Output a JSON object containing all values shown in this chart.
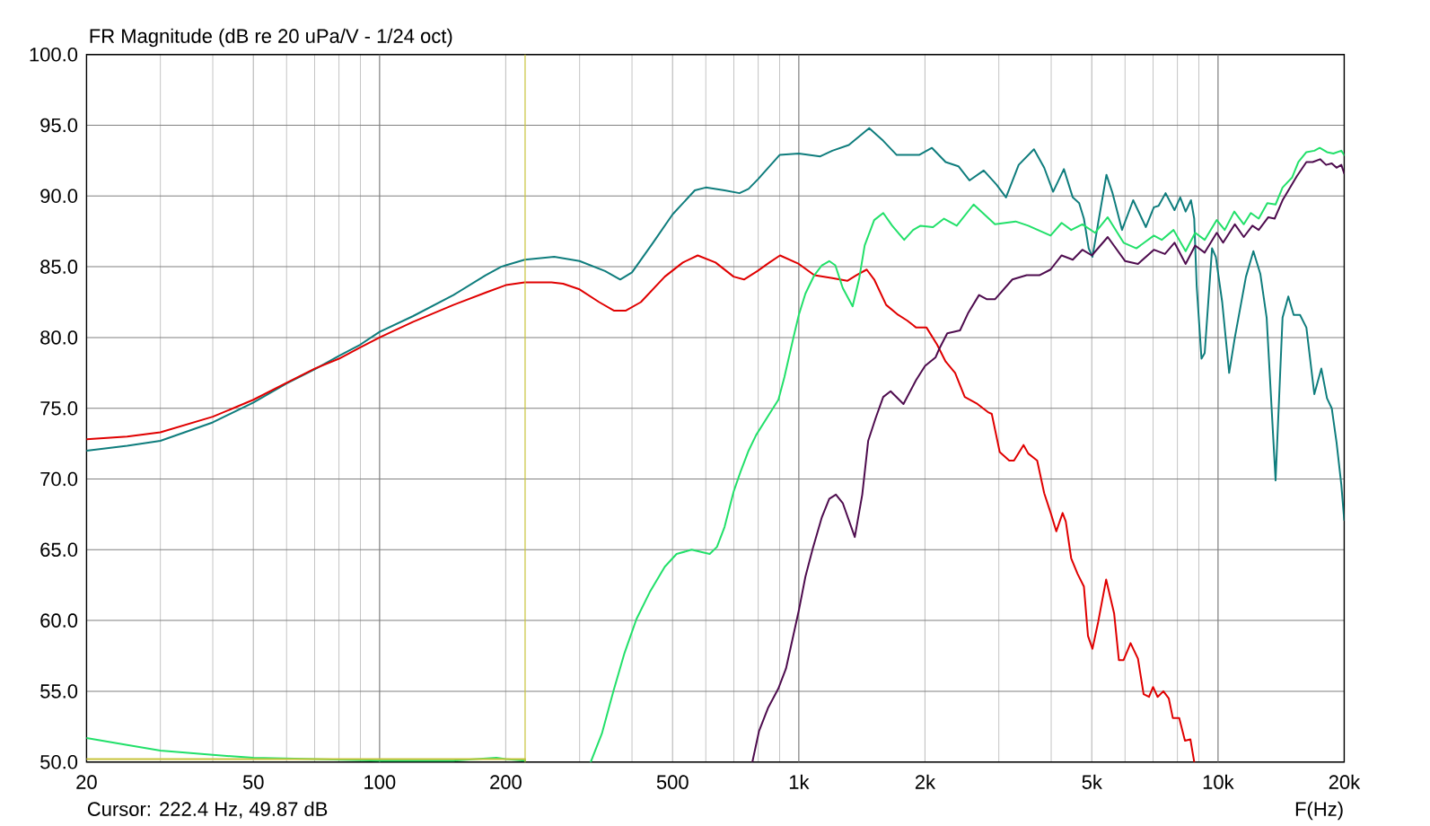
{
  "chart_data": {
    "type": "line",
    "title": "FR Magnitude (dB re 20 uPa/V - 1/24 oct)",
    "xlabel": "F(Hz)",
    "annotations": [
      "Cursor: 222.4 Hz, 49.87 dB"
    ],
    "log": "x",
    "grid": true,
    "xlim": [
      20,
      20000
    ],
    "ylim": [
      50,
      100
    ],
    "xticks": [
      20,
      50,
      100,
      200,
      500,
      {
        "value": 1000,
        "label": "1k"
      },
      {
        "value": 2000,
        "label": "2k"
      },
      {
        "value": 5000,
        "label": "5k"
      },
      {
        "value": 10000,
        "label": "10k"
      },
      {
        "value": 20000,
        "label": "20k"
      }
    ],
    "yticks": [
      {
        "value": 50,
        "label": "50.0"
      },
      {
        "value": 55,
        "label": "55.0"
      },
      {
        "value": 60,
        "label": "60.0"
      },
      {
        "value": 65,
        "label": "65.0"
      },
      {
        "value": 70,
        "label": "70.0"
      },
      {
        "value": 75,
        "label": "75.0"
      },
      {
        "value": 80,
        "label": "80.0"
      },
      {
        "value": 85,
        "label": "85.0"
      },
      {
        "value": 90,
        "label": "90.0"
      },
      {
        "value": 95,
        "label": "95.0"
      },
      {
        "value": 100,
        "label": "100.0"
      }
    ],
    "ref_lines": [
      {
        "axis": "x",
        "value": 222.4,
        "color": "#c8c43c"
      }
    ],
    "series": [
      {
        "color": "#0f7d7d",
        "x": [
          20,
          25,
          30,
          40,
          50,
          60,
          70,
          80,
          90,
          100,
          120,
          150,
          179,
          195,
          200,
          222,
          261,
          300,
          345,
          375,
          400,
          449,
          500,
          565,
          600,
          665,
          722,
          759,
          800,
          900,
          1000,
          1125,
          1202,
          1316,
          1472,
          1590,
          1712,
          1936,
          2078,
          2240,
          2403,
          2553,
          2761,
          2962,
          3121,
          3346,
          3639,
          3849,
          4042,
          4289,
          4503,
          4664,
          4787,
          4915,
          5017,
          5178,
          5418,
          5603,
          5902,
          6275,
          6729,
          7030,
          7215,
          7498,
          7874,
          8125,
          8370,
          8620,
          8774,
          8896,
          9131,
          9294,
          9677,
          9879,
          10231,
          10630,
          10968,
          11659,
          12144,
          12614,
          13062,
          13718,
          14254,
          14712,
          15151,
          15690,
          16248,
          16971,
          17640,
          18197,
          18678,
          19175,
          19686,
          20000
        ],
        "values": [
          72.0,
          72.35,
          72.7,
          74.0,
          75.4,
          76.75,
          77.75,
          78.7,
          79.5,
          80.4,
          81.5,
          83.0,
          84.4,
          85.0,
          85.1,
          85.5,
          85.7,
          85.4,
          84.7,
          84.1,
          84.6,
          86.7,
          88.7,
          90.4,
          90.6,
          90.4,
          90.2,
          90.5,
          91.2,
          92.9,
          93.0,
          92.8,
          93.2,
          93.6,
          94.8,
          93.9,
          92.9,
          92.9,
          93.4,
          92.4,
          92.1,
          91.1,
          91.8,
          90.8,
          89.9,
          92.2,
          93.3,
          92.0,
          90.3,
          91.9,
          89.9,
          89.5,
          88.4,
          86.3,
          85.7,
          88.1,
          91.5,
          90.2,
          87.6,
          89.7,
          87.8,
          89.2,
          89.3,
          90.2,
          89.0,
          89.9,
          88.9,
          89.7,
          88.4,
          83.6,
          78.5,
          78.9,
          86.3,
          85.7,
          82.5,
          77.5,
          80.0,
          84.3,
          86.1,
          84.5,
          81.4,
          69.9,
          81.4,
          82.9,
          81.6,
          81.6,
          80.7,
          76.0,
          77.8,
          75.7,
          75.0,
          72.6,
          69.6,
          67.1
        ]
      },
      {
        "color": "#e00000",
        "x": [
          20,
          25,
          30,
          40,
          50,
          60,
          70,
          80,
          90,
          100,
          120,
          150,
          180,
          200,
          222,
          257,
          274,
          300,
          334,
          362,
          387,
          420,
          479,
          529,
          574,
          633,
          699,
          740,
          797,
          851,
          902,
          1000,
          1089,
          1202,
          1305,
          1371,
          1452,
          1513,
          1616,
          1726,
          1813,
          1905,
          2017,
          2137,
          2240,
          2360,
          2488,
          2668,
          2836,
          2886,
          3015,
          3177,
          3261,
          3436,
          3527,
          3704,
          3849,
          3999,
          4113,
          4259,
          4334,
          4464,
          4623,
          4787,
          4896,
          5017,
          5178,
          5409,
          5651,
          5801,
          5953,
          6186,
          6442,
          6645,
          6846,
          7000,
          7178,
          7407,
          7630,
          7805,
          8081,
          8339,
          8592,
          8774
        ],
        "values": [
          72.8,
          73.0,
          73.3,
          74.4,
          75.6,
          76.8,
          77.8,
          78.5,
          79.3,
          80.0,
          81.1,
          82.3,
          83.2,
          83.7,
          83.9,
          83.9,
          83.8,
          83.4,
          82.5,
          81.9,
          81.9,
          82.5,
          84.3,
          85.3,
          85.8,
          85.3,
          84.3,
          84.1,
          84.7,
          85.3,
          85.8,
          85.2,
          84.4,
          84.2,
          84.0,
          84.4,
          84.8,
          84.1,
          82.3,
          81.6,
          81.2,
          80.7,
          80.7,
          79.5,
          78.3,
          77.5,
          75.8,
          75.3,
          74.7,
          74.6,
          71.9,
          71.3,
          71.3,
          72.4,
          71.8,
          71.3,
          69.0,
          67.5,
          66.3,
          67.6,
          67.0,
          64.4,
          63.3,
          62.4,
          58.9,
          58.0,
          59.9,
          62.9,
          60.5,
          57.2,
          57.2,
          58.4,
          57.3,
          54.8,
          54.6,
          55.3,
          54.6,
          55.0,
          54.5,
          53.1,
          53.1,
          51.5,
          51.6,
          50.0
        ]
      },
      {
        "color": "#22e06a",
        "x": [
          20,
          25,
          30,
          40,
          50,
          70,
          100,
          150,
          190,
          200,
          222.4,
          270,
          319,
          339,
          362,
          384,
          410,
          441,
          479,
          511,
          555,
          613,
          638,
          665,
          699,
          728,
          759,
          791,
          851,
          894,
          924,
          971,
          1000,
          1037,
          1089,
          1135,
          1182,
          1222,
          1273,
          1344,
          1394,
          1436,
          1513,
          1590,
          1670,
          1784,
          1874,
          1952,
          2090,
          2220,
          2381,
          2612,
          2937,
          3289,
          3527,
          3986,
          4236,
          4464,
          4746,
          5088,
          5457,
          5953,
          6386,
          7030,
          7340,
          7833,
          8370,
          8820,
          9294,
          9930,
          10373,
          10934,
          11520,
          11972,
          12504,
          13110,
          13718,
          14254,
          15016,
          15550,
          16248,
          16971,
          17484,
          18197,
          18845,
          19686,
          20000
        ],
        "values": [
          51.7,
          51.2,
          50.8,
          50.5,
          50.3,
          50.2,
          50.1,
          50.1,
          50.3,
          50.2,
          50.1,
          null,
          50.0,
          52.0,
          55.1,
          57.7,
          60.1,
          62.0,
          63.8,
          64.7,
          65.0,
          64.7,
          65.2,
          66.6,
          69.1,
          70.6,
          72.0,
          73.1,
          74.6,
          75.6,
          77.2,
          80.0,
          81.6,
          83.1,
          84.4,
          85.1,
          85.4,
          85.1,
          83.5,
          82.2,
          84.2,
          86.5,
          88.3,
          88.8,
          87.9,
          86.9,
          87.6,
          87.9,
          87.8,
          88.4,
          87.9,
          89.4,
          88.0,
          88.2,
          87.9,
          87.2,
          88.1,
          87.6,
          88.0,
          87.4,
          88.5,
          86.7,
          86.3,
          87.2,
          86.9,
          87.6,
          86.1,
          87.4,
          86.9,
          88.3,
          87.6,
          88.9,
          88.0,
          88.8,
          88.4,
          89.5,
          89.4,
          90.6,
          91.3,
          92.4,
          93.1,
          93.2,
          93.4,
          93.1,
          93.0,
          93.2,
          92.9
        ]
      },
      {
        "color": "#4e0c4e",
        "x": [
          775,
          804,
          844,
          894,
          932,
          963,
          1000,
          1037,
          1080,
          1135,
          1182,
          1226,
          1273,
          1360,
          1417,
          1464,
          1525,
          1590,
          1656,
          1777,
          1905,
          2001,
          2120,
          2163,
          2260,
          2424,
          2532,
          2691,
          2811,
          2937,
          3232,
          3496,
          3749,
          3986,
          4236,
          4503,
          4746,
          5000,
          5457,
          6005,
          6442,
          7030,
          7470,
          7874,
          8370,
          8820,
          9294,
          9930,
          10283,
          10968,
          11520,
          12077,
          12504,
          13180,
          13646,
          14254,
          15417,
          16248,
          16823,
          17517,
          18107,
          18678,
          19175,
          19686,
          20000
        ],
        "values": [
          50.0,
          52.2,
          53.8,
          55.2,
          56.6,
          58.5,
          60.7,
          63.1,
          65.1,
          67.3,
          68.6,
          68.9,
          68.3,
          65.9,
          68.9,
          72.7,
          74.3,
          75.8,
          76.2,
          75.3,
          77.0,
          78.0,
          78.6,
          79.2,
          80.3,
          80.5,
          81.7,
          83.0,
          82.7,
          82.7,
          84.1,
          84.4,
          84.4,
          84.8,
          85.8,
          85.5,
          86.2,
          85.8,
          87.1,
          85.4,
          85.2,
          86.2,
          85.9,
          86.7,
          85.2,
          86.5,
          86.0,
          87.4,
          86.7,
          88.0,
          87.1,
          87.9,
          87.6,
          88.5,
          88.4,
          89.7,
          91.4,
          92.4,
          92.4,
          92.6,
          92.2,
          92.3,
          92.0,
          92.2,
          91.6
        ]
      },
      {
        "color": "#c8c43c",
        "x": [
          20,
          222.4
        ],
        "values": [
          50.2,
          50.2
        ]
      }
    ]
  }
}
